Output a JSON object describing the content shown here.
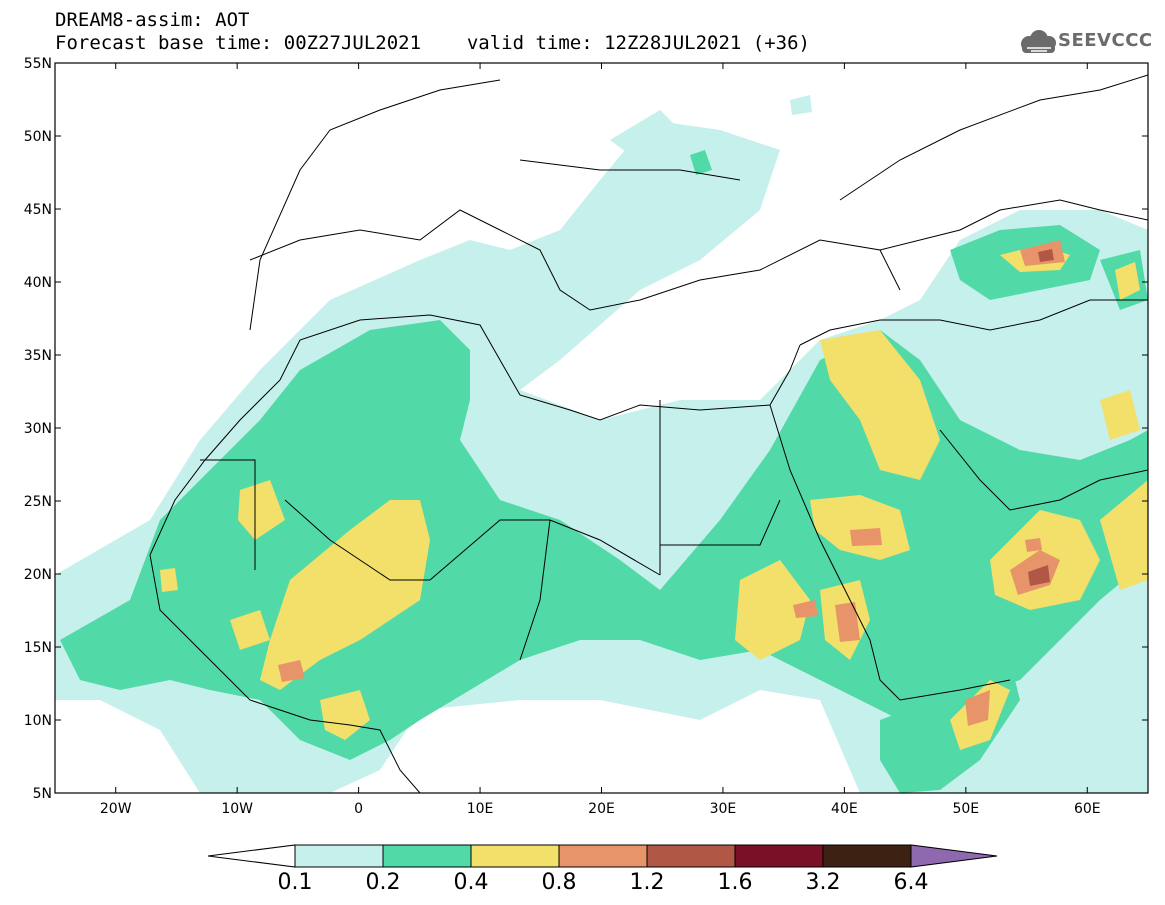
{
  "header": {
    "model_line": "DREAM8-assim: AOT",
    "base_time_label": "Forecast base time: 00Z27JUL2021",
    "valid_time_label": "valid time: 12Z28JUL2021 (+36)"
  },
  "logo": {
    "text": "SEEVCCC",
    "icon": "cloud-icon"
  },
  "map": {
    "lon_range": [
      -25,
      65
    ],
    "lat_range": [
      5,
      55
    ],
    "lat_ticks": [
      "55N",
      "50N",
      "45N",
      "40N",
      "35N",
      "30N",
      "25N",
      "20N",
      "15N",
      "10N",
      "5N"
    ],
    "lon_ticks": [
      "20W",
      "10W",
      "0",
      "10E",
      "20E",
      "30E",
      "40E",
      "50E",
      "60E"
    ]
  },
  "colorbar": {
    "labels": [
      "0.1",
      "0.2",
      "0.4",
      "0.8",
      "1.2",
      "1.6",
      "3.2",
      "6.4"
    ],
    "colors": [
      "#ffffff",
      "#c6f0ec",
      "#52d9a8",
      "#f2e06b",
      "#e8946b",
      "#b15745",
      "#7a0f28",
      "#3d2214",
      "#8e69b0"
    ]
  }
}
